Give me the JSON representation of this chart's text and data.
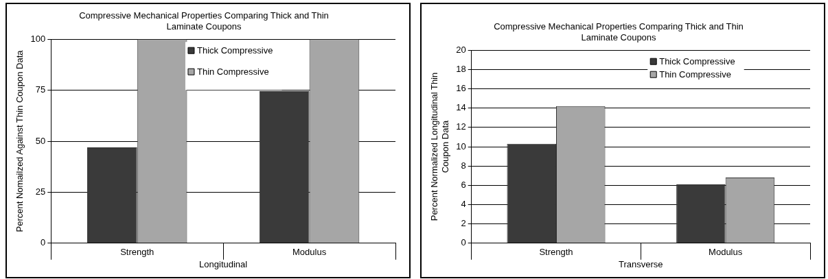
{
  "chart_data": [
    {
      "type": "bar",
      "title": "Compressive Mechanical Properties Comparing Thick and Thin Laminate Coupons",
      "xlabel": "Longitudinal",
      "ylabel": "Percent Nomailzed Against Thin Coupon Data",
      "categories": [
        "Strength",
        "Modulus"
      ],
      "series": [
        {
          "name": "Thick Compressive",
          "color": "#3a3a3a",
          "values": [
            47,
            74.5
          ]
        },
        {
          "name": "Thin Compressive",
          "color": "#a6a6a6",
          "values": [
            100,
            100
          ]
        }
      ],
      "ylim": [
        0,
        100
      ],
      "yticks": [
        0,
        25,
        50,
        75,
        100
      ],
      "grid": "y",
      "legend": "top right"
    },
    {
      "type": "bar",
      "title": "Compressive Mechanical Properties Comparing Thick and Thin Laminate Coupons",
      "xlabel": "Transverse",
      "ylabel": "Percent Normalized Longitudinal Thin Coupon Data",
      "categories": [
        "Strength",
        "Modulus"
      ],
      "series": [
        {
          "name": "Thick Compressive",
          "color": "#3a3a3a",
          "values": [
            10.3,
            6.1
          ]
        },
        {
          "name": "Thin Compressive",
          "color": "#a6a6a6",
          "values": [
            14.2,
            6.8
          ]
        }
      ],
      "ylim": [
        0,
        20
      ],
      "yticks": [
        0,
        2,
        4,
        6,
        8,
        10,
        12,
        14,
        16,
        18,
        20
      ],
      "grid": "y",
      "legend": "top right"
    }
  ]
}
